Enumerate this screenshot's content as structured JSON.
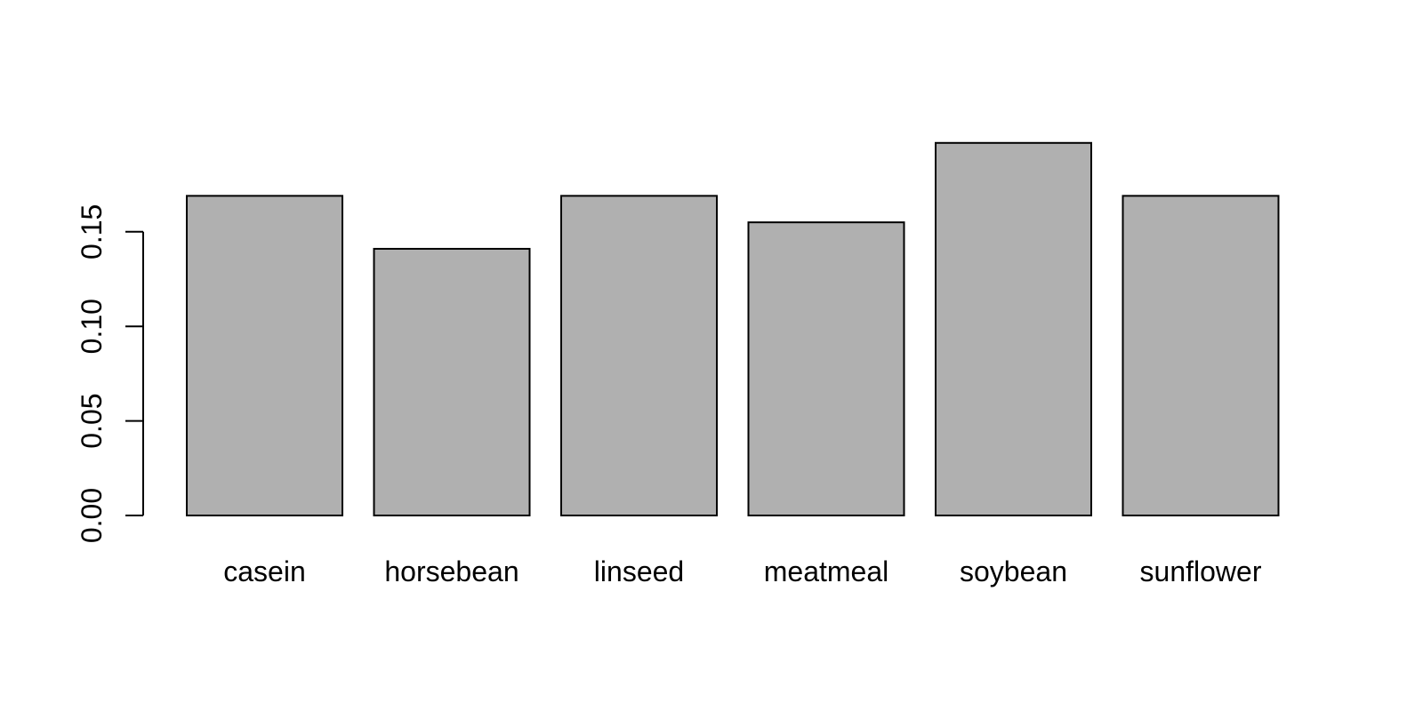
{
  "chart_data": {
    "type": "bar",
    "title": "",
    "xlabel": "",
    "ylabel": "",
    "categories": [
      "casein",
      "horsebean",
      "linseed",
      "meatmeal",
      "soybean",
      "sunflower"
    ],
    "values": [
      0.169,
      0.141,
      0.169,
      0.155,
      0.197,
      0.169
    ],
    "ylim": [
      0,
      0.2
    ],
    "yticks": [
      0.0,
      0.05,
      0.1,
      0.15
    ],
    "ytick_labels": [
      "0.00",
      "0.05",
      "0.10",
      "0.15"
    ],
    "grid": false,
    "legend": "none",
    "bar_fill": "#b0b0b0",
    "bar_stroke": "#000000"
  }
}
